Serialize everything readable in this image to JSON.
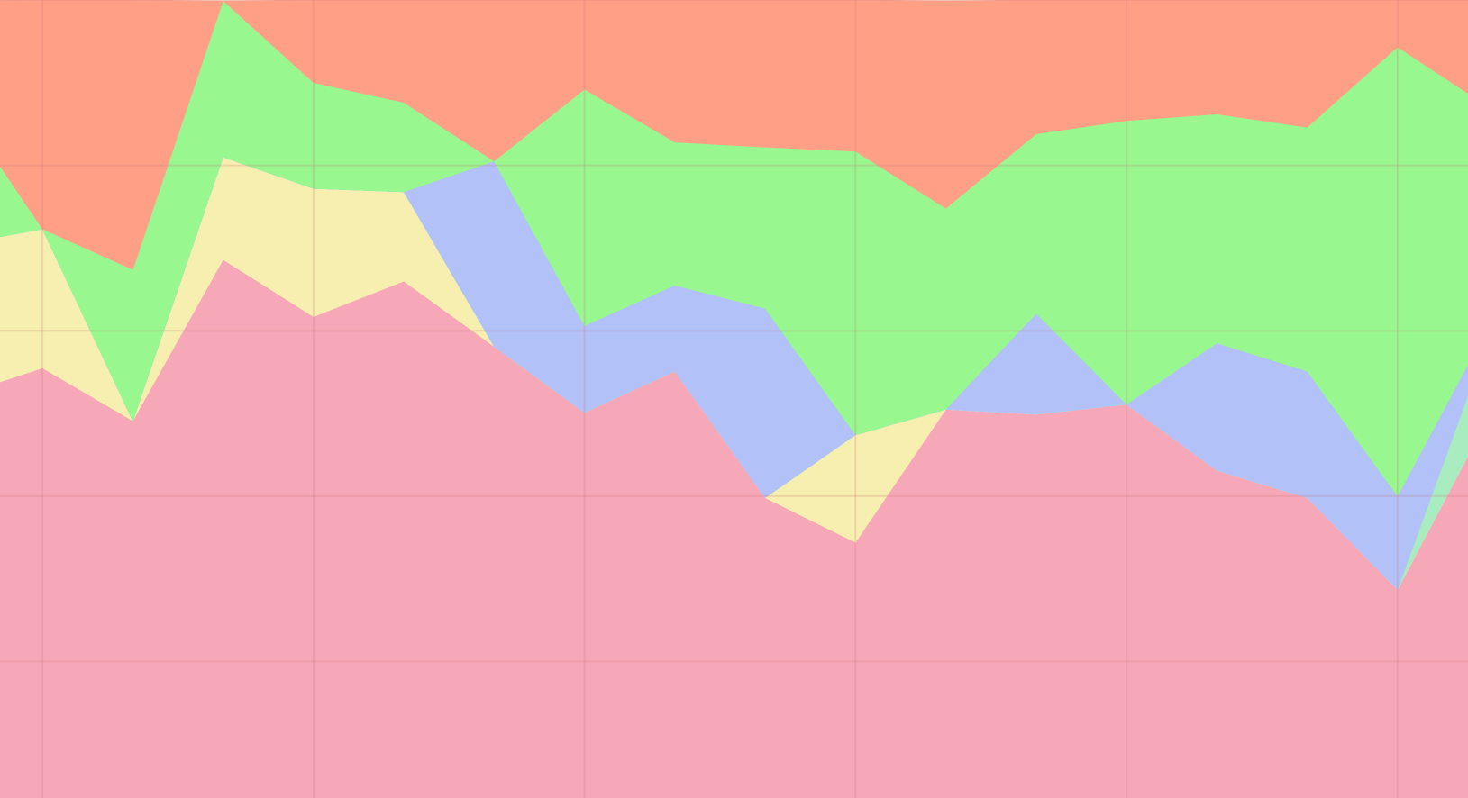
{
  "chart_data": {
    "type": "area",
    "stacked": true,
    "grid": true,
    "x": [
      -1,
      0,
      1,
      2,
      3,
      4,
      5,
      6,
      7,
      8,
      9,
      10,
      11,
      12,
      13,
      14,
      15,
      16
    ],
    "xlim": [
      -0.47,
      15.78
    ],
    "xticks": [
      0,
      3,
      6,
      9,
      12,
      15
    ],
    "ylim": [
      3.5,
      100
    ],
    "yticks": [
      20,
      40,
      60,
      80,
      100
    ],
    "series": [
      {
        "color": "#f7a8b8",
        "values": [
          51.9,
          55.5,
          49.1,
          68.6,
          61.7,
          66.0,
          58.1,
          50.1,
          55.1,
          39.8,
          34.4,
          50.5,
          49.9,
          51.1,
          43.1,
          39.8,
          28.7,
          49.4
        ]
      },
      {
        "color": "#f7efb0",
        "values": [
          18.4,
          16.8,
          0,
          12.4,
          15.5,
          10.8,
          0,
          0,
          0,
          0,
          13.0,
          0,
          0,
          0,
          0,
          0,
          0,
          0
        ]
      },
      {
        "color": "#a8ecbf",
        "values": [
          0,
          0,
          0,
          0,
          0,
          0,
          0,
          0,
          0,
          0,
          0,
          0,
          0,
          0,
          0,
          0,
          0,
          9.4
        ]
      },
      {
        "color": "#b2c1f7",
        "values": [
          0,
          0,
          0,
          0,
          0,
          0,
          22.4,
          10.5,
          10.4,
          22.9,
          0,
          0,
          12.2,
          0,
          15.4,
          15.3,
          11.3,
          1.6
        ]
      },
      {
        "color": "#98f78f",
        "values": [
          18.2,
          0,
          18.3,
          18.9,
          12.8,
          10.8,
          0,
          28.6,
          17.3,
          19.5,
          34.3,
          24.3,
          21.7,
          34.3,
          27.7,
          29.5,
          54.3,
          26.7
        ]
      },
      {
        "color": "#ff9f86",
        "values": [
          11.4,
          27.7,
          32.6,
          0,
          10.0,
          12.4,
          19.5,
          10.8,
          17.2,
          17.9,
          18.3,
          25.1,
          16.2,
          14.6,
          13.8,
          15.4,
          5.7,
          12.9
        ]
      }
    ]
  }
}
